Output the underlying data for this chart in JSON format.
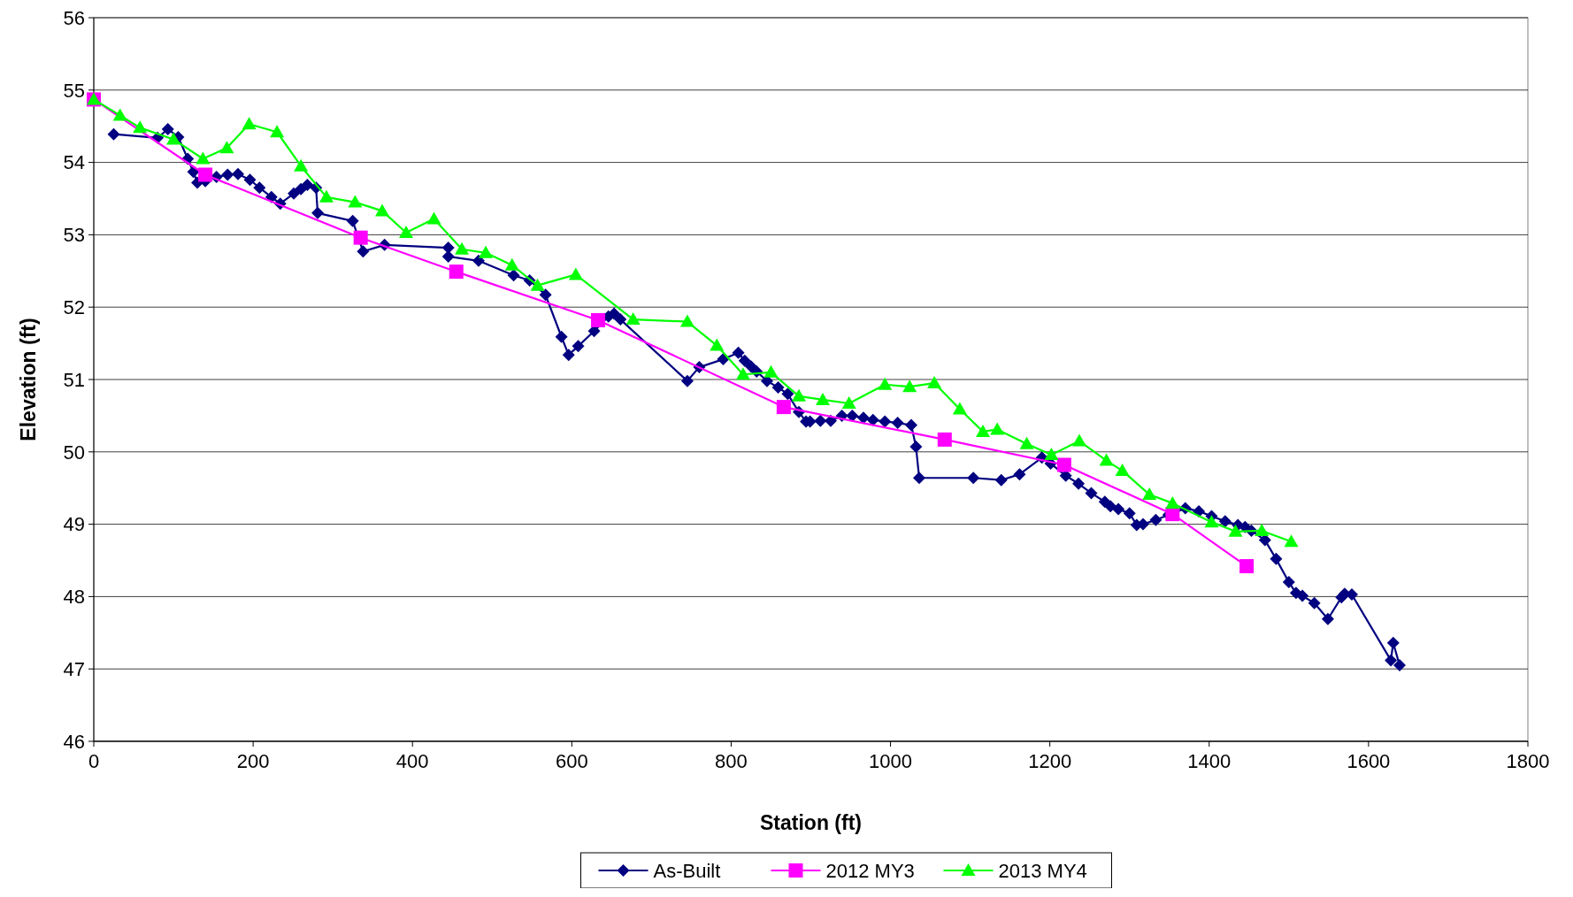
{
  "chart_data": {
    "type": "line",
    "xlabel": "Station (ft)",
    "ylabel": "Elevation (ft)",
    "xlim": [
      0,
      1800
    ],
    "xticks": [
      0,
      200,
      400,
      600,
      800,
      1000,
      1200,
      1400,
      1600,
      1800
    ],
    "ylim": [
      46,
      56
    ],
    "yticks": [
      46,
      47,
      48,
      49,
      50,
      51,
      52,
      53,
      54,
      55,
      56
    ],
    "grid": "y",
    "legend": "bottom",
    "line_style": "solid",
    "series": [
      {
        "name": "As-Built",
        "color": "#000080",
        "marker": "diamond",
        "x": [
          25,
          80,
          93,
          106,
          118,
          125,
          130,
          140,
          154,
          168,
          181,
          196,
          208,
          223,
          234,
          251,
          260,
          268,
          279,
          281,
          325,
          338,
          365,
          445,
          445,
          483,
          527,
          547,
          567,
          587,
          596,
          608,
          628,
          646,
          653,
          661,
          745,
          760,
          790,
          809,
          817,
          825,
          832,
          845,
          859,
          871,
          885,
          894,
          899,
          912,
          925,
          939,
          952,
          966,
          978,
          993,
          1009,
          1026,
          1032,
          1036,
          1104,
          1139,
          1162,
          1190,
          1201,
          1220,
          1236,
          1252,
          1269,
          1276,
          1286,
          1300,
          1309,
          1317,
          1333,
          1349,
          1370,
          1387,
          1403,
          1420,
          1436,
          1445,
          1453,
          1470,
          1484,
          1500,
          1509,
          1517,
          1532,
          1549,
          1566,
          1570,
          1579,
          1628,
          1631,
          1639
        ],
        "values": [
          54.39,
          54.34,
          54.46,
          54.35,
          54.05,
          53.87,
          53.72,
          53.74,
          53.8,
          53.83,
          53.84,
          53.76,
          53.65,
          53.52,
          53.43,
          53.57,
          53.63,
          53.69,
          53.65,
          53.3,
          53.19,
          52.77,
          52.86,
          52.82,
          52.7,
          52.64,
          52.44,
          52.37,
          52.17,
          51.59,
          51.34,
          51.46,
          51.67,
          51.87,
          51.91,
          51.83,
          50.98,
          51.17,
          51.28,
          51.37,
          51.26,
          51.18,
          51.11,
          50.98,
          50.89,
          50.8,
          50.55,
          50.42,
          50.42,
          50.43,
          50.43,
          50.5,
          50.5,
          50.47,
          50.44,
          50.42,
          50.4,
          50.37,
          50.07,
          49.64,
          49.64,
          49.61,
          49.69,
          49.92,
          49.84,
          49.67,
          49.56,
          49.43,
          49.31,
          49.25,
          49.21,
          49.15,
          48.99,
          49.0,
          49.06,
          49.13,
          49.22,
          49.18,
          49.11,
          49.04,
          48.99,
          48.96,
          48.91,
          48.78,
          48.52,
          48.2,
          48.05,
          48.01,
          47.91,
          47.69,
          47.99,
          48.04,
          48.03,
          47.12,
          47.36,
          47.05
        ]
      },
      {
        "name": "2012 MY3",
        "color": "#ff00ff",
        "marker": "square",
        "x": [
          0,
          140,
          335,
          455,
          633,
          866,
          1068,
          1218,
          1354,
          1447
        ],
        "values": [
          54.87,
          53.83,
          52.96,
          52.49,
          51.82,
          50.62,
          50.17,
          49.82,
          49.14,
          48.42
        ]
      },
      {
        "name": "2013 MY4",
        "color": "#00ff00",
        "marker": "triangle",
        "x": [
          0,
          33,
          58,
          100,
          137,
          167,
          195,
          230,
          260,
          292,
          328,
          362,
          392,
          427,
          462,
          492,
          525,
          557,
          605,
          677,
          745,
          782,
          815,
          850,
          885,
          915,
          948,
          993,
          1024,
          1055,
          1087,
          1116,
          1134,
          1171,
          1202,
          1237,
          1271,
          1291,
          1325,
          1354,
          1403,
          1433,
          1466,
          1503
        ],
        "values": [
          54.87,
          54.65,
          54.48,
          54.32,
          54.05,
          54.2,
          54.53,
          54.42,
          53.95,
          53.52,
          53.45,
          53.33,
          53.03,
          53.22,
          52.8,
          52.75,
          52.58,
          52.3,
          52.45,
          51.83,
          51.8,
          51.47,
          51.07,
          51.1,
          50.77,
          50.72,
          50.67,
          50.93,
          50.9,
          50.95,
          50.59,
          50.28,
          50.31,
          50.11,
          49.96,
          50.15,
          49.88,
          49.74,
          49.41,
          49.29,
          49.03,
          48.9,
          48.91,
          48.76
        ]
      }
    ]
  }
}
